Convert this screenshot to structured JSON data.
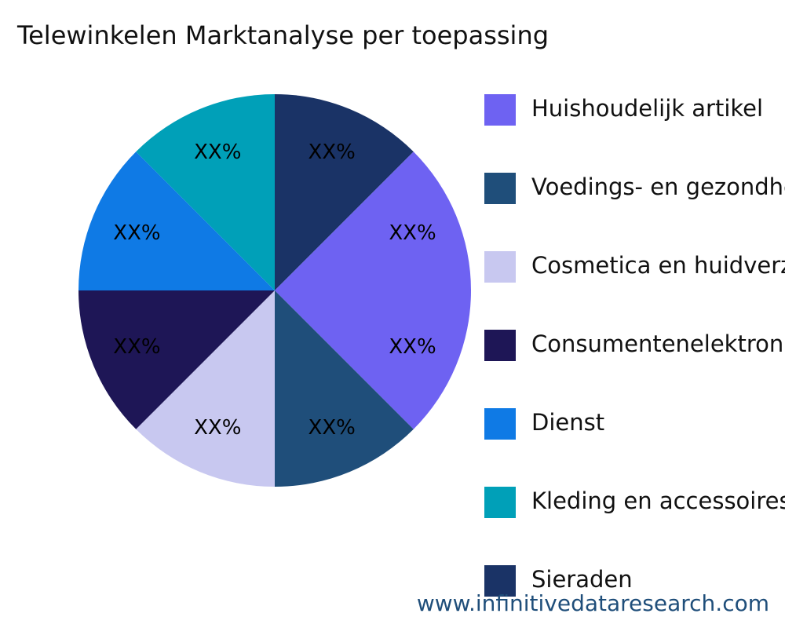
{
  "chart_data": {
    "type": "pie",
    "title": "Telewinkelen Marktanalyse per toepassing",
    "categories": [
      "Huishoudelijk artikel",
      "Voedings- en gezondheidsproducten",
      "Cosmetica en huidverzorging",
      "Consumentenelektronica",
      "Dienst",
      "Kleding en accessoires",
      "Sieraden",
      null
    ],
    "values": [
      12.5,
      12.5,
      12.5,
      12.5,
      12.5,
      12.5,
      12.5,
      12.5
    ],
    "value_labels": [
      "XX%",
      "XX%",
      "XX%",
      "XX%",
      "XX%",
      "XX%",
      "XX%",
      "XX%"
    ],
    "colors": [
      "#6e62f2",
      "#1f4e7a",
      "#c8c8f0",
      "#1e1656",
      "#0f7ae5",
      "#00a0b8",
      "#1a3366",
      "#6e62f2"
    ],
    "legend": "right",
    "source": "www.infinitivedataresearch.com"
  }
}
